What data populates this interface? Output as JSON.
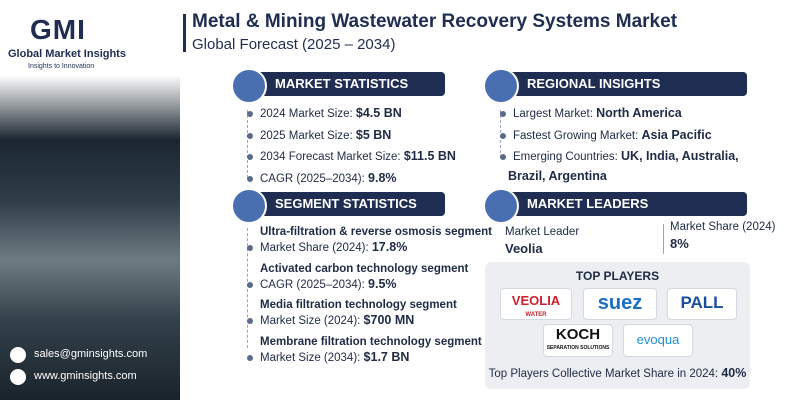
{
  "brand": {
    "logo": "GMI",
    "name": "Global Market Insights",
    "tagline": "Insights to Innovation"
  },
  "header": {
    "title": "Metal & Mining Wastewater Recovery Systems Market",
    "subtitle": "Global Forecast (2025 – 2034)"
  },
  "market_statistics": {
    "title": "MARKET STATISTICS",
    "items": [
      {
        "label": "2024 Market Size: ",
        "value": "$4.5 BN"
      },
      {
        "label": "2025 Market Size: ",
        "value": "$5 BN"
      },
      {
        "label": "2034 Forecast Market Size: ",
        "value": "$11.5 BN"
      },
      {
        "label": "CAGR (2025–2034): ",
        "value": "9.8%"
      }
    ]
  },
  "regional_insights": {
    "title": "REGIONAL INSIGHTS",
    "items": [
      {
        "label": "Largest Market: ",
        "value": "North America"
      },
      {
        "label": "Fastest Growing Market: ",
        "value": "Asia Pacific"
      },
      {
        "label": "Emerging Countries: ",
        "value": "UK, India, Australia,"
      }
    ],
    "continuation": "Brazil, Argentina"
  },
  "segment_statistics": {
    "title": "SEGMENT STATISTICS",
    "items": [
      {
        "segment": "Ultra-filtration & reverse osmosis segment",
        "label": "Market Share (2024): ",
        "value": "17.8%"
      },
      {
        "segment": "Activated carbon technology  segment",
        "label": "CAGR (2025–2034): ",
        "value": "9.5%"
      },
      {
        "segment": "Media filtration technology  segment",
        "label": "Market Size (2024): ",
        "value": "$700 MN"
      },
      {
        "segment": "Membrane filtration technology segment",
        "label": "Market Size (2034): ",
        "value": "$1.7 BN"
      }
    ]
  },
  "market_leaders": {
    "title": "MARKET LEADERS",
    "leader_label": "Market Leader",
    "leader": "Veolia",
    "share_label": "Market Share (2024)",
    "share": "8%"
  },
  "top_players": {
    "title": "TOP PLAYERS",
    "logos": {
      "veolia": "VEOLIA",
      "veolia_sub": "WATER",
      "suez": "suez",
      "pall": "PALL",
      "koch": "KOCH",
      "koch_sub": "SEPARATION SOLUTIONS",
      "evoqua": "evoqua"
    },
    "footer_label": "Top Players Collective Market Share in 2024: ",
    "footer_value": "40%"
  },
  "contact": {
    "email": "sales@gminsights.com",
    "website": "www.gminsights.com"
  }
}
